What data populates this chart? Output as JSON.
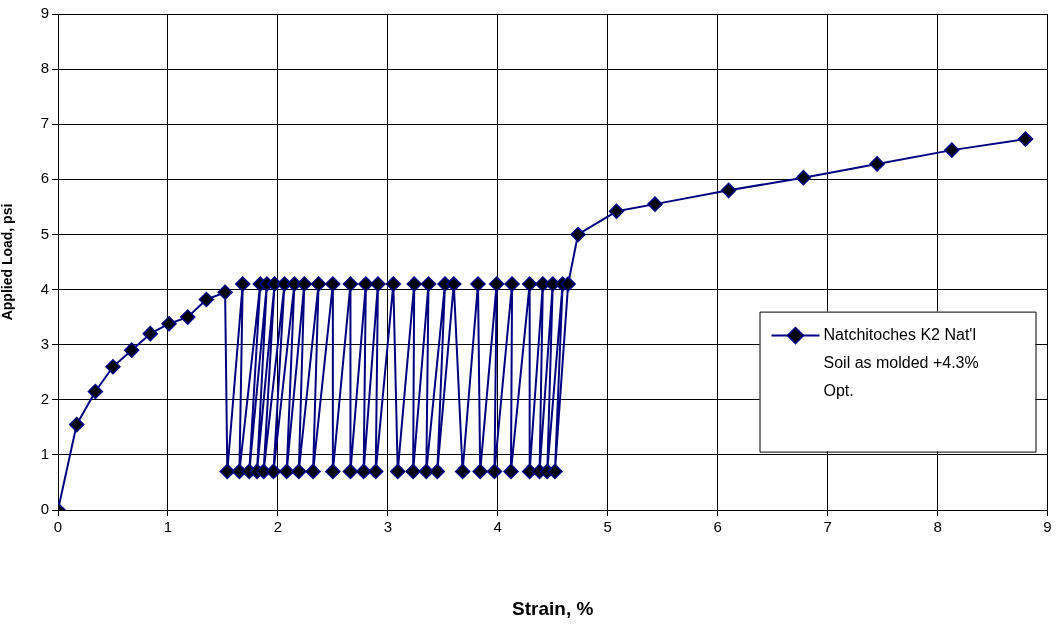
{
  "chart_data": {
    "type": "line",
    "xlabel": "Strain, %",
    "ylabel": "Applied Load, psi",
    "xlim": [
      0,
      9
    ],
    "xticks": [
      0,
      1,
      2,
      3,
      4,
      5,
      6,
      7,
      8,
      9
    ],
    "ylim": [
      0,
      9
    ],
    "yticks": [
      0,
      1,
      2,
      3,
      4,
      5,
      6,
      7,
      8,
      9
    ],
    "grid": true,
    "legend": "right",
    "marker": "diamond",
    "line_style": "solid",
    "series": [
      {
        "name": "Natchitoches K2 Nat'l Soil as molded +4.3% Opt.",
        "color": "#000080",
        "x": [
          0,
          0.17,
          0.34,
          0.5,
          0.67,
          0.84,
          1.01,
          1.18,
          1.35,
          1.52,
          1.54,
          1.68,
          1.65,
          1.84,
          1.74,
          1.9,
          1.81,
          1.97,
          1.87,
          2.06,
          1.96,
          2.15,
          2.08,
          2.24,
          2.19,
          2.37,
          2.32,
          2.5,
          2.5,
          2.66,
          2.66,
          2.8,
          2.78,
          2.91,
          2.89,
          3.05,
          3.09,
          3.24,
          3.23,
          3.37,
          3.35,
          3.52,
          3.45,
          3.6,
          3.68,
          3.82,
          3.84,
          3.99,
          3.97,
          4.13,
          4.12,
          4.29,
          4.29,
          4.41,
          4.38,
          4.5,
          4.45,
          4.59,
          4.52,
          4.64,
          4.73,
          5.08,
          5.43,
          6.1,
          6.78,
          7.45,
          8.13,
          8.8
        ],
        "values": [
          0,
          1.55,
          2.15,
          2.6,
          2.9,
          3.2,
          3.38,
          3.5,
          3.82,
          3.95,
          0.7,
          4.1,
          0.7,
          4.1,
          0.7,
          4.1,
          0.7,
          4.1,
          0.7,
          4.1,
          0.7,
          4.1,
          0.7,
          4.1,
          0.7,
          4.1,
          0.7,
          4.1,
          0.7,
          4.1,
          0.7,
          4.1,
          0.7,
          4.1,
          0.7,
          4.1,
          0.7,
          4.1,
          0.7,
          4.1,
          0.7,
          4.1,
          0.7,
          4.1,
          0.7,
          4.1,
          0.7,
          4.1,
          0.7,
          4.1,
          0.7,
          4.1,
          0.7,
          4.1,
          0.7,
          4.1,
          0.7,
          4.1,
          0.7,
          4.1,
          5.0,
          5.42,
          5.55,
          5.8,
          6.03,
          6.28,
          6.53,
          6.73
        ]
      }
    ]
  }
}
